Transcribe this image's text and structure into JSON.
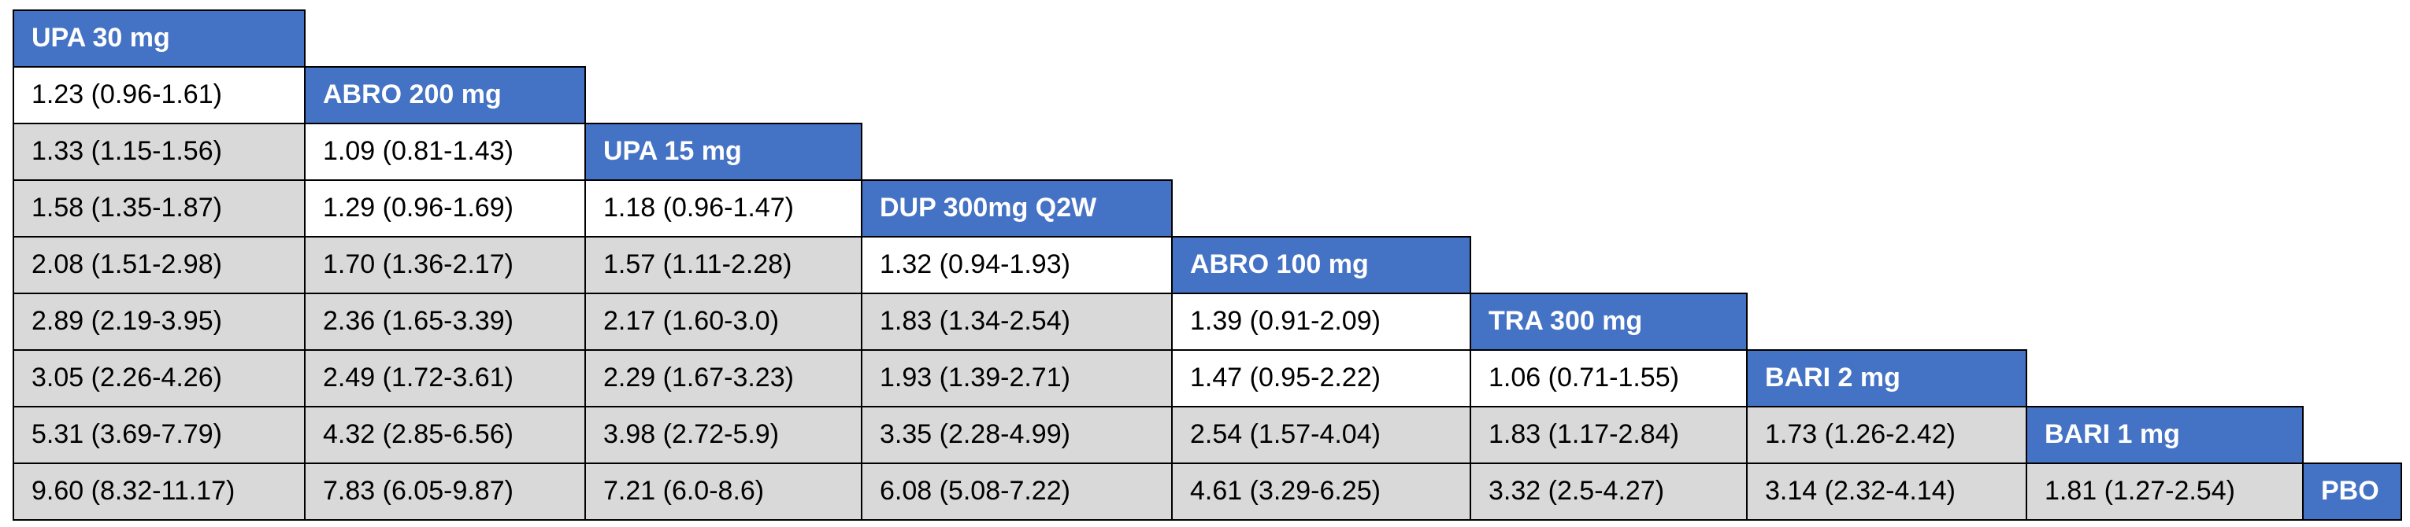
{
  "table": {
    "rows": [
      {
        "header": "UPA 30 mg",
        "cells": [],
        "shaded": []
      },
      {
        "header": "ABRO 200 mg",
        "cells": [
          "1.23 (0.96-1.61)"
        ],
        "shaded": [
          false
        ]
      },
      {
        "header": "UPA 15 mg",
        "cells": [
          "1.33 (1.15-1.56)",
          "1.09 (0.81-1.43)"
        ],
        "shaded": [
          true,
          false
        ]
      },
      {
        "header": "DUP 300mg Q2W",
        "cells": [
          "1.58 (1.35-1.87)",
          "1.29 (0.96-1.69)",
          "1.18 (0.96-1.47)"
        ],
        "shaded": [
          true,
          false,
          false
        ]
      },
      {
        "header": "ABRO 100 mg",
        "cells": [
          "2.08 (1.51-2.98)",
          "1.70 (1.36-2.17)",
          "1.57 (1.11-2.28)",
          "1.32 (0.94-1.93)"
        ],
        "shaded": [
          true,
          true,
          true,
          false
        ]
      },
      {
        "header": "TRA 300 mg",
        "cells": [
          "2.89 (2.19-3.95)",
          "2.36 (1.65-3.39)",
          "2.17 (1.60-3.0)",
          "1.83 (1.34-2.54)",
          "1.39 (0.91-2.09)"
        ],
        "shaded": [
          true,
          true,
          true,
          true,
          false
        ]
      },
      {
        "header": "BARI 2 mg",
        "cells": [
          "3.05 (2.26-4.26)",
          "2.49 (1.72-3.61)",
          "2.29 (1.67-3.23)",
          "1.93 (1.39-2.71)",
          "1.47 (0.95-2.22)",
          "1.06 (0.71-1.55)"
        ],
        "shaded": [
          true,
          true,
          true,
          true,
          false,
          false
        ]
      },
      {
        "header": "BARI 1 mg",
        "cells": [
          "5.31 (3.69-7.79)",
          "4.32 (2.85-6.56)",
          "3.98 (2.72-5.9)",
          "3.35 (2.28-4.99)",
          "2.54 (1.57-4.04)",
          "1.83 (1.17-2.84)",
          "1.73 (1.26-2.42)"
        ],
        "shaded": [
          true,
          true,
          true,
          true,
          true,
          true,
          true
        ]
      },
      {
        "header": "PBO",
        "cells": [
          "9.60 (8.32-11.17)",
          "7.83 (6.05-9.87)",
          "7.21 (6.0-8.6)",
          "6.08 (5.08-7.22)",
          "4.61 (3.29-6.25)",
          "3.32 (2.5-4.27)",
          "3.14 (2.32-4.14)",
          "1.81 (1.27-2.54)"
        ],
        "shaded": [
          true,
          true,
          true,
          true,
          true,
          true,
          true,
          true
        ]
      }
    ]
  }
}
